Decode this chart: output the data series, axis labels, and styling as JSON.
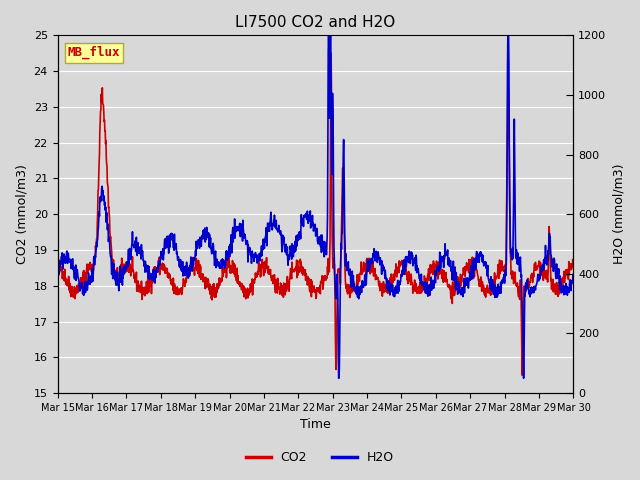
{
  "title": "LI7500 CO2 and H2O",
  "xlabel": "Time",
  "ylabel_left": "CO2 (mmol/m3)",
  "ylabel_right": "H2O (mmol/m3)",
  "co2_ylim": [
    15.0,
    25.0
  ],
  "h2o_ylim": [
    0,
    1200
  ],
  "co2_yticks": [
    15.0,
    16.0,
    17.0,
    18.0,
    19.0,
    20.0,
    21.0,
    22.0,
    23.0,
    24.0,
    25.0
  ],
  "h2o_yticks": [
    0,
    200,
    400,
    600,
    800,
    1000,
    1200
  ],
  "xtick_labels": [
    "Mar 15",
    "Mar 16",
    "Mar 17",
    "Mar 18",
    "Mar 19",
    "Mar 20",
    "Mar 21",
    "Mar 22",
    "Mar 23",
    "Mar 24",
    "Mar 25",
    "Mar 26",
    "Mar 27",
    "Mar 28",
    "Mar 29",
    "Mar 30"
  ],
  "co2_color": "#cc0000",
  "h2o_color": "#0000cc",
  "background_color": "#d8d8d8",
  "plot_bg_color": "#d8d8d8",
  "label_box_color": "#ffff99",
  "label_text": "MB_flux",
  "label_text_color": "#cc0000",
  "grid_color": "#ffffff",
  "title_fontsize": 11,
  "axis_fontsize": 9,
  "tick_fontsize": 8,
  "legend_fontsize": 9,
  "line_width": 1.2
}
